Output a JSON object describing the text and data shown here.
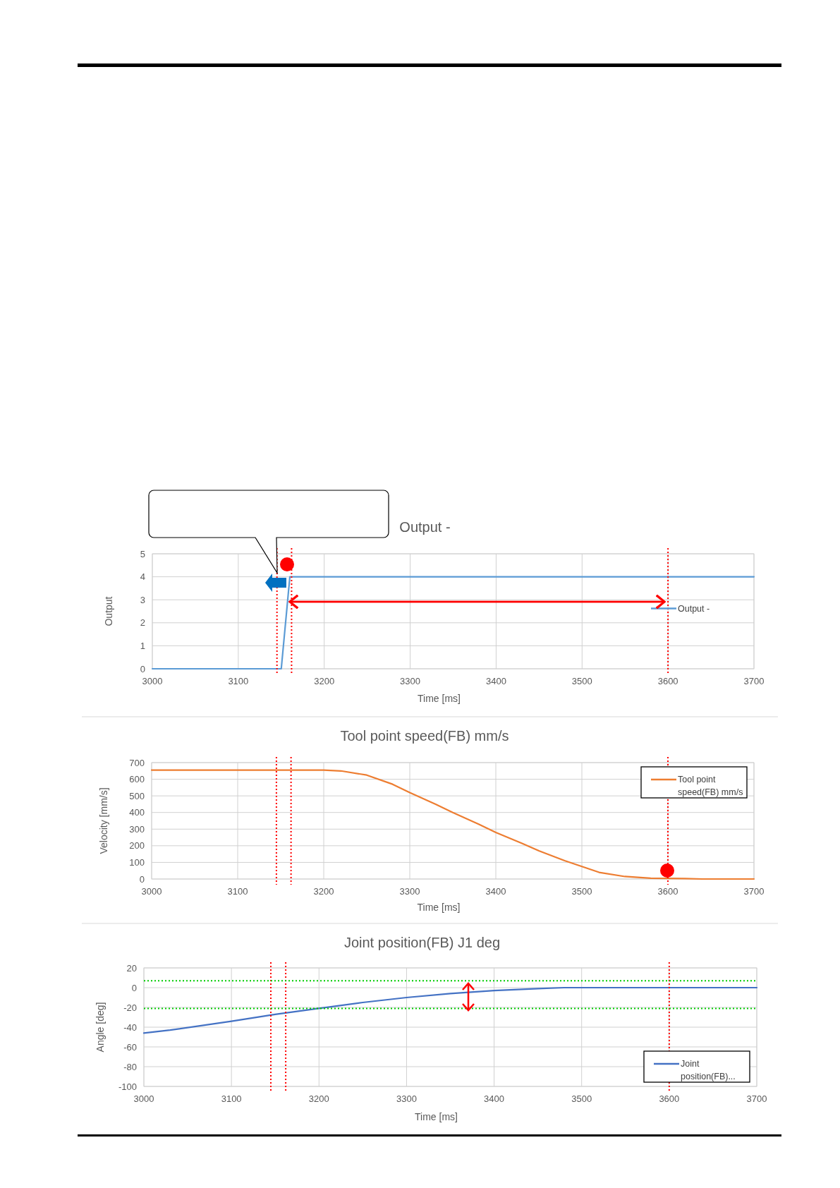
{
  "chart_data": [
    {
      "type": "line",
      "title": "Output -",
      "xlabel": "Time [ms]",
      "ylabel": "Output",
      "xlim": [
        3000,
        3700
      ],
      "xticks": [
        3000,
        3100,
        3200,
        3300,
        3400,
        3500,
        3600,
        3700
      ],
      "ylim": [
        0,
        5
      ],
      "yticks": [
        0,
        1,
        2,
        3,
        4,
        5
      ],
      "grid": true,
      "legend": "right",
      "line_style": "solid",
      "marker": "none",
      "series": [
        {
          "name": "Output -",
          "color": "#5b9bd5",
          "x": [
            3000,
            3150,
            3160,
            3700
          ],
          "values": [
            0,
            0,
            4,
            4
          ]
        }
      ],
      "ref_lines": [
        {
          "axis": "x",
          "value": 3145,
          "color": "#ff0000",
          "line_style": "dotted"
        },
        {
          "axis": "x",
          "value": 3162,
          "color": "#ff0000",
          "line_style": "dotted"
        },
        {
          "axis": "x",
          "value": 3600,
          "color": "#ff0000",
          "line_style": "dotted"
        }
      ]
    },
    {
      "type": "line",
      "title": "Tool point speed(FB) mm/s",
      "xlabel": "Time [ms]",
      "ylabel": "Velocity [mm/s]",
      "xlim": [
        3000,
        3700
      ],
      "xticks": [
        3000,
        3100,
        3200,
        3300,
        3400,
        3500,
        3600,
        3700
      ],
      "ylim": [
        0,
        700
      ],
      "yticks": [
        0,
        100,
        200,
        300,
        400,
        500,
        600,
        700
      ],
      "grid": true,
      "legend": "top right",
      "line_style": "solid",
      "marker": "none",
      "series": [
        {
          "name": "Tool point speed(FB) mm/s",
          "color": "#ed7d31",
          "x": [
            3000,
            3200,
            3220,
            3250,
            3280,
            3300,
            3330,
            3350,
            3380,
            3400,
            3430,
            3450,
            3480,
            3500,
            3520,
            3550,
            3580,
            3620,
            3640,
            3700
          ],
          "values": [
            655,
            655,
            650,
            625,
            570,
            520,
            450,
            400,
            330,
            280,
            215,
            170,
            110,
            75,
            40,
            15,
            5,
            3,
            0,
            0
          ]
        }
      ],
      "ref_lines": [
        {
          "axis": "x",
          "value": 3145,
          "color": "#ff0000",
          "line_style": "dotted"
        },
        {
          "axis": "x",
          "value": 3162,
          "color": "#ff0000",
          "line_style": "dotted"
        },
        {
          "axis": "x",
          "value": 3600,
          "color": "#ff0000",
          "line_style": "dotted"
        }
      ]
    },
    {
      "type": "line",
      "title": "Joint position(FB) J1 deg",
      "xlabel": "Time [ms]",
      "ylabel": "Angle [deg]",
      "xlim": [
        3000,
        3700
      ],
      "xticks": [
        3000,
        3100,
        3200,
        3300,
        3400,
        3500,
        3600,
        3700
      ],
      "ylim": [
        -100,
        20
      ],
      "yticks": [
        -100,
        -80,
        -60,
        -40,
        -20,
        0,
        20
      ],
      "grid": true,
      "legend": "bottom right",
      "line_style": "solid",
      "marker": "none",
      "series": [
        {
          "name": "Joint position(FB)...",
          "color": "#4472c4",
          "x": [
            3000,
            3030,
            3100,
            3150,
            3200,
            3250,
            3300,
            3350,
            3400,
            3450,
            3480,
            3700
          ],
          "values": [
            -46,
            -43,
            -34,
            -27,
            -21,
            -15,
            -10,
            -6,
            -3,
            -1,
            0,
            0
          ]
        }
      ],
      "ref_lines": [
        {
          "axis": "x",
          "value": 3145,
          "color": "#ff0000",
          "line_style": "dotted"
        },
        {
          "axis": "x",
          "value": 3162,
          "color": "#ff0000",
          "line_style": "dotted"
        },
        {
          "axis": "x",
          "value": 3600,
          "color": "#ff0000",
          "line_style": "dotted"
        },
        {
          "axis": "y",
          "value": 7,
          "color": "#00cc00",
          "line_style": "dotted"
        },
        {
          "axis": "y",
          "value": -21,
          "color": "#00cc00",
          "line_style": "dotted"
        }
      ]
    }
  ]
}
